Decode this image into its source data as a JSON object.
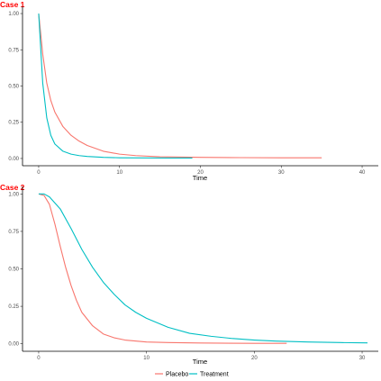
{
  "colors": {
    "placebo": "#F8766D",
    "treatment": "#00BFC4",
    "tag": "#FF0000"
  },
  "legend": {
    "placement": "bottom",
    "items": [
      "Placebo",
      "Treatment"
    ]
  },
  "chart_data": [
    {
      "type": "line",
      "tag": "Case 1",
      "xlabel": "Time",
      "ylabel": "",
      "xlim": [
        -2,
        42
      ],
      "ylim": [
        -0.05,
        1.05
      ],
      "xticks": [
        0,
        10,
        20,
        30,
        40
      ],
      "yticks": [
        "0.00",
        "0.25",
        "0.50",
        "0.75",
        "1.00"
      ],
      "grid": false,
      "series": [
        {
          "name": "Placebo",
          "x": [
            0,
            0.5,
            1,
            1.5,
            2,
            3,
            4,
            5,
            6,
            8,
            10,
            12,
            15,
            20,
            25,
            30,
            35
          ],
          "y": [
            1.0,
            0.72,
            0.52,
            0.4,
            0.32,
            0.22,
            0.16,
            0.12,
            0.09,
            0.05,
            0.03,
            0.02,
            0.012,
            0.008,
            0.006,
            0.005,
            0.005
          ]
        },
        {
          "name": "Treatment",
          "x": [
            0,
            0.5,
            1,
            1.5,
            2,
            3,
            4,
            5,
            6,
            8,
            10,
            13,
            16,
            19
          ],
          "y": [
            1.0,
            0.52,
            0.28,
            0.16,
            0.1,
            0.05,
            0.03,
            0.02,
            0.014,
            0.008,
            0.005,
            0.004,
            0.003,
            0.003
          ]
        }
      ]
    },
    {
      "type": "line",
      "tag": "Case 2",
      "xlabel": "Time",
      "ylabel": "",
      "xlim": [
        -1.5,
        31.5
      ],
      "ylim": [
        -0.05,
        1.05
      ],
      "xticks": [
        0,
        10,
        20,
        30
      ],
      "yticks": [
        "0.00",
        "0.25",
        "0.50",
        "0.75",
        "1.00"
      ],
      "grid": false,
      "series": [
        {
          "name": "Placebo",
          "x": [
            0,
            0.5,
            1,
            1.5,
            2,
            2.5,
            3,
            3.5,
            4,
            5,
            6,
            7,
            8,
            10,
            12,
            15,
            20,
            23
          ],
          "y": [
            1.0,
            0.99,
            0.93,
            0.8,
            0.65,
            0.51,
            0.39,
            0.29,
            0.21,
            0.12,
            0.065,
            0.04,
            0.025,
            0.012,
            0.008,
            0.005,
            0.003,
            0.003
          ]
        },
        {
          "name": "Treatment",
          "x": [
            0,
            0.5,
            1,
            2,
            3,
            4,
            5,
            6,
            7,
            8,
            9,
            10,
            12,
            14,
            16,
            18,
            20,
            22,
            25,
            28,
            30.5
          ],
          "y": [
            1.0,
            1.0,
            0.98,
            0.9,
            0.77,
            0.63,
            0.51,
            0.41,
            0.33,
            0.26,
            0.21,
            0.17,
            0.11,
            0.07,
            0.05,
            0.035,
            0.025,
            0.018,
            0.012,
            0.008,
            0.006
          ]
        }
      ]
    }
  ]
}
